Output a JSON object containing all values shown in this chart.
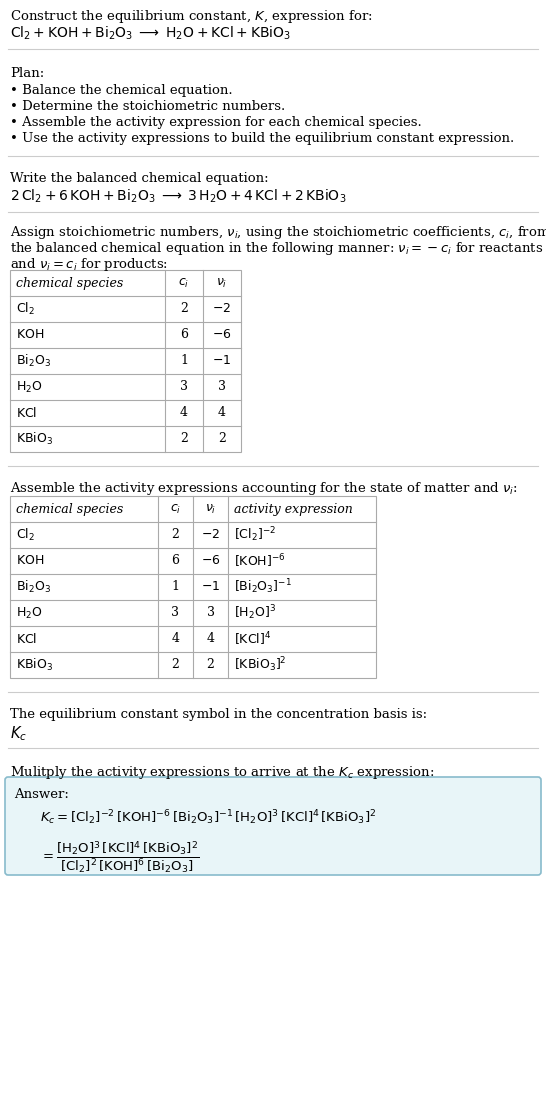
{
  "bg_color": "#ffffff",
  "text_color": "#000000",
  "title_line1": "Construct the equilibrium constant, $K$, expression for:",
  "title_line2": "$\\mathrm{Cl_2 + KOH + Bi_2O_3 \\;\\longrightarrow\\; H_2O + KCl + KBiO_3}$",
  "plan_header": "Plan:",
  "plan_items": [
    "• Balance the chemical equation.",
    "• Determine the stoichiometric numbers.",
    "• Assemble the activity expression for each chemical species.",
    "• Use the activity expressions to build the equilibrium constant expression."
  ],
  "balanced_header": "Write the balanced chemical equation:",
  "balanced_eq": "$\\mathrm{2\\,Cl_2 + 6\\,KOH + Bi_2O_3 \\;\\longrightarrow\\; 3\\,H_2O + 4\\,KCl + 2\\,KBiO_3}$",
  "stoich_intro_1": "Assign stoichiometric numbers, $\\nu_i$, using the stoichiometric coefficients, $c_i$, from",
  "stoich_intro_2": "the balanced chemical equation in the following manner: $\\nu_i = -c_i$ for reactants",
  "stoich_intro_3": "and $\\nu_i = c_i$ for products:",
  "table1_headers": [
    "chemical species",
    "$c_i$",
    "$\\nu_i$"
  ],
  "table1_rows": [
    [
      "$\\mathrm{Cl_2}$",
      "2",
      "$-2$"
    ],
    [
      "$\\mathrm{KOH}$",
      "6",
      "$-6$"
    ],
    [
      "$\\mathrm{Bi_2O_3}$",
      "1",
      "$-1$"
    ],
    [
      "$\\mathrm{H_2O}$",
      "3",
      "3"
    ],
    [
      "$\\mathrm{KCl}$",
      "4",
      "4"
    ],
    [
      "$\\mathrm{KBiO_3}$",
      "2",
      "2"
    ]
  ],
  "activity_intro": "Assemble the activity expressions accounting for the state of matter and $\\nu_i$:",
  "table2_headers": [
    "chemical species",
    "$c_i$",
    "$\\nu_i$",
    "activity expression"
  ],
  "table2_rows": [
    [
      "$\\mathrm{Cl_2}$",
      "2",
      "$-2$",
      "$[\\mathrm{Cl_2}]^{-2}$"
    ],
    [
      "$\\mathrm{KOH}$",
      "6",
      "$-6$",
      "$[\\mathrm{KOH}]^{-6}$"
    ],
    [
      "$\\mathrm{Bi_2O_3}$",
      "1",
      "$-1$",
      "$[\\mathrm{Bi_2O_3}]^{-1}$"
    ],
    [
      "$\\mathrm{H_2O}$",
      "3",
      "3",
      "$[\\mathrm{H_2O}]^{3}$"
    ],
    [
      "$\\mathrm{KCl}$",
      "4",
      "4",
      "$[\\mathrm{KCl}]^{4}$"
    ],
    [
      "$\\mathrm{KBiO_3}$",
      "2",
      "2",
      "$[\\mathrm{KBiO_3}]^{2}$"
    ]
  ],
  "kc_header": "The equilibrium constant symbol in the concentration basis is:",
  "kc_symbol": "$K_c$",
  "multiply_header": "Mulitply the activity expressions to arrive at the $K_c$ expression:",
  "answer_label": "Answer:",
  "answer_box_color": "#e8f5f8",
  "answer_box_edge": "#88bbcc",
  "answer_line1": "$K_c = [\\mathrm{Cl_2}]^{-2}\\,[\\mathrm{KOH}]^{-6}\\,[\\mathrm{Bi_2O_3}]^{-1}\\,[\\mathrm{H_2O}]^{3}\\,[\\mathrm{KCl}]^{4}\\,[\\mathrm{KBiO_3}]^{2}$",
  "answer_eq_lhs": "$= \\dfrac{[\\mathrm{H_2O}]^{3}\\,[\\mathrm{KCl}]^{4}\\,[\\mathrm{KBiO_3}]^{2}}{[\\mathrm{Cl_2}]^{2}\\,[\\mathrm{KOH}]^{6}\\,[\\mathrm{Bi_2O_3}]}$"
}
